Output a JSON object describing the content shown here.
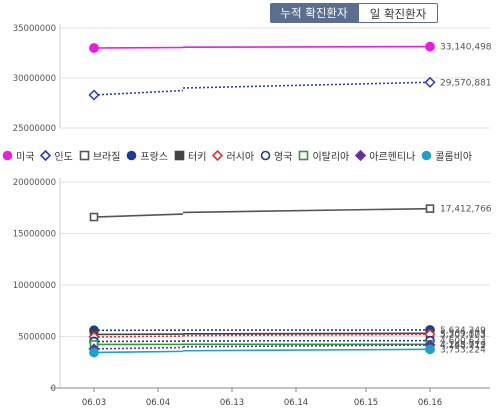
{
  "tabs": [
    {
      "label": "누적 확진환자",
      "active": true
    },
    {
      "label": "일 확진환자",
      "active": false
    }
  ],
  "chart_data": [
    {
      "type": "line",
      "panel": "top",
      "x": [
        "06.03",
        "06.04",
        "06.13",
        "06.14",
        "06.15",
        "06.16"
      ],
      "ylim": [
        25000000,
        35000000
      ],
      "yticks": [
        "35000000",
        "30000000",
        "25000000"
      ],
      "grid": true,
      "series": [
        {
          "name": "미국",
          "color": "#e81ce6",
          "marker": "circle-filled",
          "dash": false,
          "points": [
            [
              0,
              33000000
            ],
            [
              5,
              33140498
            ]
          ],
          "end_label": "33,140,498"
        },
        {
          "name": "인도",
          "color": "#2b3bc4",
          "marker": "diamond-open",
          "dash": true,
          "points": [
            [
              0,
              28300000
            ],
            [
              5,
              29570881
            ]
          ],
          "end_label": "29,570,881"
        }
      ]
    },
    {
      "type": "line",
      "panel": "bottom",
      "x": [
        "06.03",
        "06.04",
        "06.13",
        "06.14",
        "06.15",
        "06.16"
      ],
      "ylim": [
        0,
        20000000
      ],
      "yticks": [
        "20000000",
        "15000000",
        "10000000",
        "5000000",
        "0"
      ],
      "grid": true,
      "series": [
        {
          "name": "브라질",
          "color": "#555555",
          "marker": "square-open",
          "dash": false,
          "points": [
            [
              0,
              16600000
            ],
            [
              5,
              17412766
            ]
          ],
          "end_label": "17,412,766"
        },
        {
          "name": "프랑스",
          "color": "#1f3a93",
          "marker": "circle-filled",
          "dash": true,
          "points": [
            [
              0,
              5600000
            ],
            [
              5,
              5634349
            ]
          ],
          "end_label": "5,634,349"
        },
        {
          "name": "터키",
          "color": "#444444",
          "marker": "square-filled",
          "dash": false,
          "points": [
            [
              0,
              5200000
            ],
            [
              5,
              5309873
            ]
          ],
          "end_label": "5,309,873"
        },
        {
          "name": "러시아",
          "color": "#d9363e",
          "marker": "diamond-open",
          "dash": true,
          "points": [
            [
              0,
              4950000
            ],
            [
              5,
              5207103
            ]
          ],
          "end_label": "5,207,103"
        },
        {
          "name": "영국",
          "color": "#1f3a93",
          "marker": "circle-open",
          "dash": true,
          "points": [
            [
              0,
              4520000
            ],
            [
              5,
              4600623
            ]
          ],
          "end_label": "4,600,623"
        },
        {
          "name": "이탈리아",
          "color": "#2e9b3a",
          "marker": "square-open",
          "dash": false,
          "points": [
            [
              0,
              4230000
            ],
            [
              5,
              4245779
            ]
          ],
          "end_label": "4,245,779"
        },
        {
          "name": "아르헨티나",
          "color": "#6a2ba8",
          "marker": "diamond-filled",
          "dash": true,
          "points": [
            [
              0,
              3800000
            ],
            [
              5,
              4168912
            ]
          ],
          "end_label": "4,168,912"
        },
        {
          "name": "콜롬비아",
          "color": "#1aa3c8",
          "marker": "circle-filled",
          "dash": false,
          "points": [
            [
              0,
              3450000
            ],
            [
              5,
              3753224
            ]
          ],
          "end_label": "3,753,224"
        }
      ]
    }
  ]
}
